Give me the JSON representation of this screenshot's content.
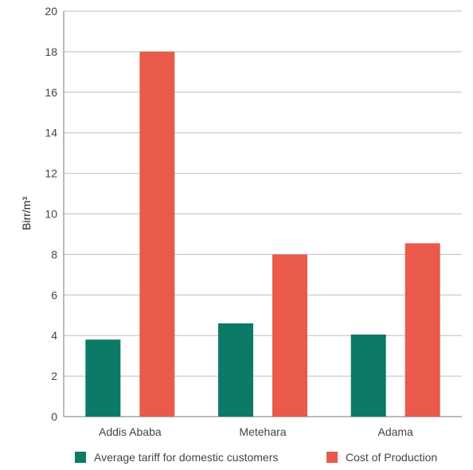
{
  "chart_data": {
    "type": "bar",
    "categories": [
      "Addis Ababa",
      "Metehara",
      "Adama"
    ],
    "series": [
      {
        "name": "Average tariff for domestic customers",
        "values": [
          3.8,
          4.6,
          4.05
        ]
      },
      {
        "name": "Cost of Production",
        "values": [
          18,
          8,
          8.55
        ]
      }
    ],
    "xlabel": "",
    "ylabel": "Birr/m³",
    "ylim": [
      0,
      20
    ],
    "yticks": [
      0,
      2,
      4,
      6,
      8,
      10,
      12,
      14,
      16,
      18,
      20
    ],
    "grid": "horizontal",
    "legend_position": "bottom",
    "colors": [
      "#0b7a66",
      "#e95a4b"
    ]
  }
}
